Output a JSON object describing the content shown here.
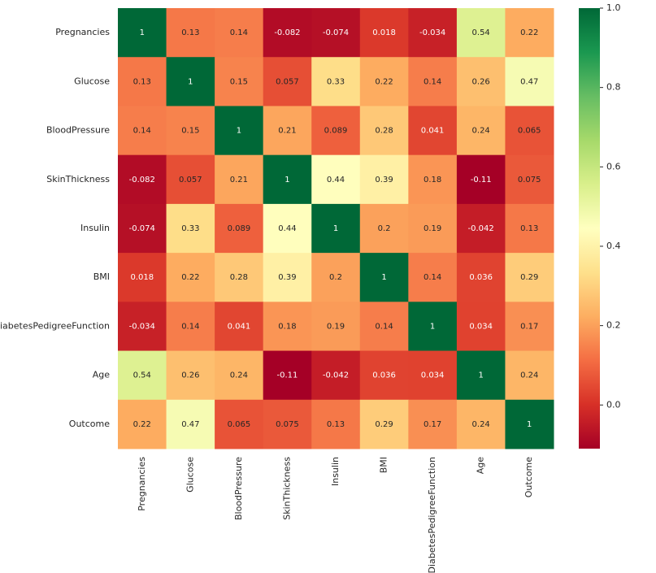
{
  "chart_data": {
    "type": "heatmap",
    "xcategories": [
      "Pregnancies",
      "Glucose",
      "BloodPressure",
      "SkinThickness",
      "Insulin",
      "BMI",
      "DiabetesPedigreeFunction",
      "Age",
      "Outcome"
    ],
    "ycategories": [
      "Pregnancies",
      "Glucose",
      "BloodPressure",
      "SkinThickness",
      "Insulin",
      "BMI",
      "DiabetesPedigreeFunction",
      "Age",
      "Outcome"
    ],
    "values": [
      [
        1,
        0.13,
        0.14,
        -0.082,
        -0.074,
        0.018,
        -0.034,
        0.54,
        0.22
      ],
      [
        0.13,
        1,
        0.15,
        0.057,
        0.33,
        0.22,
        0.14,
        0.26,
        0.47
      ],
      [
        0.14,
        0.15,
        1,
        0.21,
        0.089,
        0.28,
        0.041,
        0.24,
        0.065
      ],
      [
        -0.082,
        0.057,
        0.21,
        1,
        0.44,
        0.39,
        0.18,
        -0.11,
        0.075
      ],
      [
        -0.074,
        0.33,
        0.089,
        0.44,
        1,
        0.2,
        0.19,
        -0.042,
        0.13
      ],
      [
        0.018,
        0.22,
        0.28,
        0.39,
        0.2,
        1,
        0.14,
        0.036,
        0.29
      ],
      [
        -0.034,
        0.14,
        0.041,
        0.18,
        0.19,
        0.14,
        1,
        0.034,
        0.17
      ],
      [
        0.54,
        0.26,
        0.24,
        -0.11,
        -0.042,
        0.036,
        0.034,
        1,
        0.24
      ],
      [
        0.22,
        0.47,
        0.065,
        0.075,
        0.13,
        0.29,
        0.17,
        0.24,
        1
      ]
    ],
    "zlim": [
      -0.11,
      1
    ],
    "zticks": [
      {
        "value": 0,
        "label": "0.0"
      },
      {
        "value": 0.2,
        "label": "0.2"
      },
      {
        "value": 0.4,
        "label": "0.4"
      },
      {
        "value": 0.6,
        "label": "0.6"
      },
      {
        "value": 0.8,
        "label": "0.8"
      },
      {
        "value": 1,
        "label": "1.0"
      }
    ],
    "colormap": [
      "#a50026",
      "#d73027",
      "#f46d43",
      "#fdae61",
      "#fee08b",
      "#ffffbf",
      "#d9ef8b",
      "#a6d96a",
      "#66bd63",
      "#1a9850",
      "#006837"
    ]
  }
}
